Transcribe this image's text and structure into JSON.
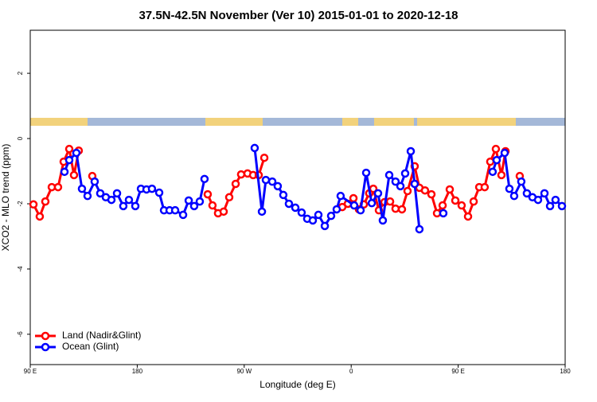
{
  "chart_data": {
    "type": "line",
    "title": "37.5N-42.5N November (Ver 10)   2015-01-01 to 2020-12-18",
    "x_label": "Longitude (deg E)",
    "y_label": "XCO2 - MLO trend (ppm)",
    "xlim": [
      90,
      540
    ],
    "ylim": [
      -6.93,
      3.32
    ],
    "xticks": [
      {
        "value": 90,
        "label": "90 E"
      },
      {
        "value": 180,
        "label": "180"
      },
      {
        "value": 270,
        "label": "90 W"
      },
      {
        "value": 360,
        "label": "0"
      },
      {
        "value": 450,
        "label": "90 E"
      },
      {
        "value": 540,
        "label": "180"
      }
    ],
    "yticks": [
      2,
      0,
      -2,
      -4,
      -6
    ],
    "legend": "bottom-left",
    "series": [
      {
        "name": "Land (Nadir&Glint)",
        "color": "#ff0000",
        "x": [
          92.7,
          98.0,
          102.7,
          108.1,
          113.4,
          118.1,
          122.8,
          126.8,
          130.8,
          null,
          142.2,
          null,
          239.3,
          243.3,
          248.0,
          252.7,
          257.4,
          262.8,
          267.4,
          272.8,
          277.5,
          282.2,
          286.9,
          null,
          352.5,
          357.2,
          361.9,
          366.5,
          370.6,
          375.2,
          378.6,
          383.3,
          388.0,
          392.7,
          397.3,
          402.7,
          407.4,
          413.4,
          417.4,
          422.1,
          427.5,
          432.2,
          436.9,
          442.9,
          447.6,
          452.9,
          458.3,
          463.0,
          467.7,
          472.3,
          477.0,
          481.7,
          486.4,
          489.8,
          null,
          501.8
        ],
        "values": [
          -2.02,
          -2.39,
          -1.93,
          -1.49,
          -1.49,
          -0.71,
          -0.32,
          -1.12,
          -0.37,
          null,
          -1.15,
          null,
          -1.71,
          -2.05,
          -2.29,
          -2.24,
          -1.8,
          -1.39,
          -1.1,
          -1.07,
          -1.12,
          -1.12,
          -0.59,
          null,
          -2.1,
          -2.0,
          -1.83,
          -2.17,
          -2.02,
          -1.68,
          -1.54,
          -2.2,
          -1.95,
          -1.93,
          -2.15,
          -2.17,
          -1.61,
          -0.85,
          -1.51,
          -1.59,
          -1.71,
          -2.29,
          -2.05,
          -1.56,
          -1.9,
          -2.05,
          -2.39,
          -1.93,
          -1.49,
          -1.49,
          -0.71,
          -0.32,
          -1.12,
          -0.39,
          null,
          -1.15
        ]
      },
      {
        "name": "Ocean (Glint)",
        "color": "#0000ff",
        "x": [
          118.8,
          122.8,
          128.8,
          133.5,
          138.2,
          144.2,
          148.9,
          153.6,
          158.3,
          163.0,
          168.3,
          173.0,
          178.4,
          183.1,
          187.8,
          192.4,
          198.5,
          202.5,
          207.2,
          211.9,
          218.6,
          223.3,
          227.9,
          232.6,
          236.6,
          null,
          278.8,
          284.9,
          288.2,
          293.6,
          298.2,
          302.9,
          307.6,
          313.0,
          318.3,
          323.0,
          327.7,
          332.4,
          337.8,
          343.1,
          347.8,
          351.1,
          362.5,
          367.9,
          372.6,
          377.3,
          382.6,
          386.6,
          392.0,
          397.3,
          401.4,
          405.4,
          410.1,
          413.4,
          417.4,
          null,
          437.5,
          null,
          479.0,
          482.4,
          489.1,
          493.1,
          497.1,
          503.1,
          507.8,
          512.5,
          517.2,
          522.6,
          527.3,
          531.9,
          537.3
        ],
        "values": [
          -1.02,
          -0.66,
          -0.44,
          -1.54,
          -1.76,
          -1.32,
          -1.68,
          -1.8,
          -1.88,
          -1.68,
          -2.07,
          -1.88,
          -2.07,
          -1.54,
          -1.56,
          -1.54,
          -1.66,
          -2.2,
          -2.2,
          -2.2,
          -2.34,
          -1.9,
          -2.07,
          -1.93,
          -1.24,
          null,
          -0.29,
          -2.24,
          -1.27,
          -1.32,
          -1.46,
          -1.73,
          -2.0,
          -2.12,
          -2.27,
          -2.46,
          -2.51,
          -2.34,
          -2.68,
          -2.37,
          -2.17,
          -1.76,
          -2.05,
          -2.2,
          -1.05,
          -1.98,
          -1.68,
          -2.51,
          -1.12,
          -1.32,
          -1.46,
          -1.07,
          -0.39,
          -1.39,
          -2.78,
          null,
          -2.29,
          null,
          -1.02,
          -0.66,
          -0.44,
          -1.54,
          -1.76,
          -1.32,
          -1.68,
          -1.8,
          -1.88,
          -1.68,
          -2.07,
          -1.88,
          -2.07
        ]
      }
    ]
  }
}
